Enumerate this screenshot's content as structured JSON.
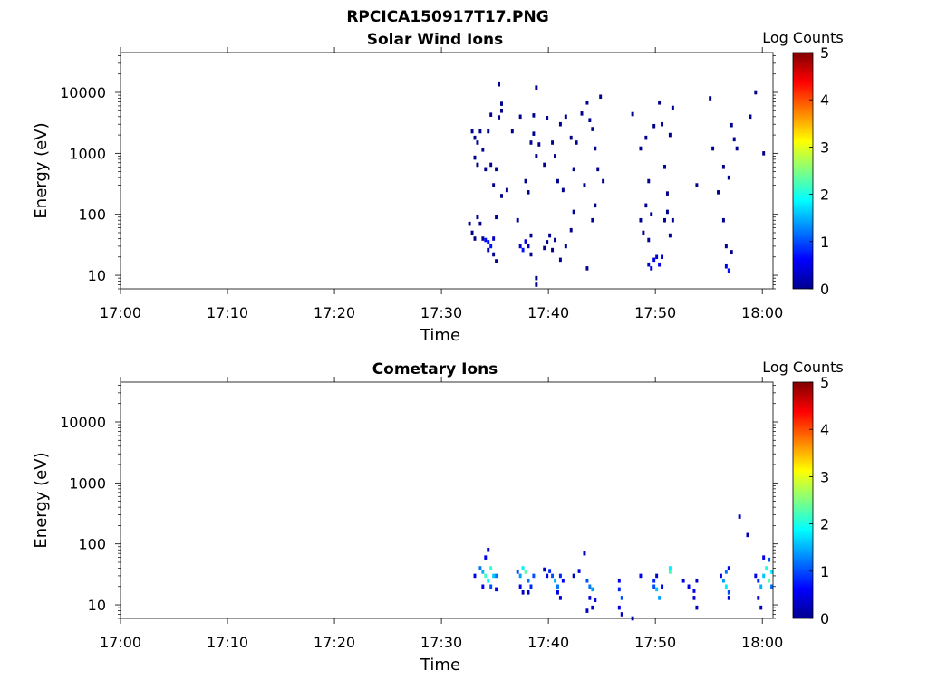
{
  "figure": {
    "title": "RPCICA150917T17.PNG"
  },
  "colormap": [
    "#00008f",
    "#0000ff",
    "#0080ff",
    "#00ffff",
    "#80ff80",
    "#ffff00",
    "#ff8000",
    "#ff0000",
    "#800000"
  ],
  "chart_data": [
    {
      "type": "heatmap",
      "title": "Solar Wind Ions",
      "xlabel": "Time",
      "ylabel": "Energy (eV)",
      "yscale": "log",
      "xlim": [
        "17:00",
        "18:01"
      ],
      "ylim": [
        6,
        45000
      ],
      "xticks": [
        "17:00",
        "17:10",
        "17:20",
        "17:30",
        "17:40",
        "17:50",
        "18:00"
      ],
      "yticks": [
        10,
        100,
        1000,
        10000
      ],
      "ytick_labels": [
        "10",
        "100",
        "1000",
        "10000"
      ],
      "colorbar": {
        "label": "Log Counts",
        "min": 0,
        "max": 5,
        "ticks": [
          "0",
          "1",
          "2",
          "3",
          "4",
          "5"
        ]
      },
      "grid": false,
      "cells": [
        [
          "17:32:45",
          2300,
          0
        ],
        [
          "17:33:00",
          1800,
          0
        ],
        [
          "17:33:15",
          1500,
          0
        ],
        [
          "17:33:30",
          2300,
          0
        ],
        [
          "17:34:15",
          2300,
          0
        ],
        [
          "17:33:00",
          850,
          0
        ],
        [
          "17:33:15",
          650,
          0
        ],
        [
          "17:33:45",
          1150,
          0
        ],
        [
          "17:34:00",
          550,
          0
        ],
        [
          "17:34:30",
          650,
          0
        ],
        [
          "17:35:00",
          550,
          0
        ],
        [
          "17:35:15",
          3900,
          0
        ],
        [
          "17:35:30",
          5000,
          0
        ],
        [
          "17:35:30",
          6500,
          0
        ],
        [
          "17:35:15",
          13500,
          0
        ],
        [
          "17:34:30",
          4300,
          0
        ],
        [
          "17:36:30",
          2300,
          0
        ],
        [
          "17:34:45",
          300,
          0
        ],
        [
          "17:35:30",
          200,
          0
        ],
        [
          "17:36:00",
          250,
          0
        ],
        [
          "17:37:15",
          4000,
          0
        ],
        [
          "17:37:45",
          350,
          0
        ],
        [
          "17:38:00",
          230,
          0
        ],
        [
          "17:38:15",
          1500,
          0
        ],
        [
          "17:38:30",
          4200,
          0
        ],
        [
          "17:38:30",
          2100,
          0
        ],
        [
          "17:38:45",
          900,
          0
        ],
        [
          "17:39:00",
          1400,
          0
        ],
        [
          "17:39:30",
          650,
          0
        ],
        [
          "17:39:45",
          3800,
          0
        ],
        [
          "17:40:15",
          1500,
          0
        ],
        [
          "17:40:30",
          900,
          0
        ],
        [
          "17:40:45",
          350,
          0
        ],
        [
          "17:41:00",
          3000,
          0
        ],
        [
          "17:41:15",
          250,
          0
        ],
        [
          "17:41:30",
          4000,
          0
        ],
        [
          "17:42:00",
          1800,
          0
        ],
        [
          "17:42:15",
          550,
          0
        ],
        [
          "17:42:30",
          1500,
          0
        ],
        [
          "17:43:00",
          4500,
          0
        ],
        [
          "17:43:15",
          300,
          0
        ],
        [
          "17:43:30",
          6800,
          0
        ],
        [
          "17:43:45",
          3500,
          0
        ],
        [
          "17:44:00",
          2500,
          0
        ],
        [
          "17:44:15",
          1200,
          0
        ],
        [
          "17:44:30",
          550,
          0
        ],
        [
          "17:44:45",
          8500,
          0
        ],
        [
          "17:45:00",
          350,
          0
        ],
        [
          "17:47:45",
          4400,
          0
        ],
        [
          "17:48:30",
          1200,
          0
        ],
        [
          "17:49:00",
          1800,
          0
        ],
        [
          "17:49:15",
          350,
          0
        ],
        [
          "17:49:45",
          2800,
          0
        ],
        [
          "17:50:15",
          6800,
          0
        ],
        [
          "17:50:30",
          3000,
          0
        ],
        [
          "17:50:45",
          600,
          0
        ],
        [
          "17:51:00",
          220,
          0
        ],
        [
          "17:51:15",
          2000,
          0
        ],
        [
          "17:51:30",
          5600,
          0
        ],
        [
          "17:53:45",
          300,
          0
        ],
        [
          "17:55:00",
          8000,
          0
        ],
        [
          "17:55:15",
          1200,
          0
        ],
        [
          "17:55:45",
          230,
          0
        ],
        [
          "17:56:15",
          600,
          0
        ],
        [
          "17:56:45",
          400,
          0
        ],
        [
          "17:57:00",
          2900,
          0
        ],
        [
          "17:57:15",
          1700,
          0
        ],
        [
          "17:57:30",
          1200,
          0
        ],
        [
          "17:58:45",
          4000,
          0
        ],
        [
          "17:59:15",
          10000,
          0
        ],
        [
          "18:00:00",
          1000,
          0
        ],
        [
          "17:38:45",
          12000,
          0
        ],
        [
          "17:32:30",
          70,
          0
        ],
        [
          "17:32:45",
          50,
          0
        ],
        [
          "17:33:00",
          40,
          0
        ],
        [
          "17:33:15",
          90,
          0
        ],
        [
          "17:33:30",
          70,
          0
        ],
        [
          "17:33:45",
          40,
          0
        ],
        [
          "17:34:00",
          38,
          0.7
        ],
        [
          "17:34:15",
          35,
          0.7
        ],
        [
          "17:34:30",
          30,
          0.7
        ],
        [
          "17:34:45",
          40,
          0.3
        ],
        [
          "17:34:15",
          26,
          0.3
        ],
        [
          "17:34:45",
          22,
          0
        ],
        [
          "17:35:00",
          17,
          0
        ],
        [
          "17:35:00",
          90,
          0
        ],
        [
          "17:37:00",
          80,
          0
        ],
        [
          "17:37:15",
          30,
          0.3
        ],
        [
          "17:37:30",
          26,
          0.7
        ],
        [
          "17:37:45",
          36,
          0.5
        ],
        [
          "17:38:00",
          30,
          0.3
        ],
        [
          "17:38:15",
          45,
          0
        ],
        [
          "17:38:15",
          22,
          0
        ],
        [
          "17:38:45",
          9,
          0
        ],
        [
          "17:38:45",
          7,
          0
        ],
        [
          "17:39:30",
          28,
          0
        ],
        [
          "17:39:45",
          35,
          0
        ],
        [
          "17:40:00",
          45,
          0
        ],
        [
          "17:40:15",
          26,
          0
        ],
        [
          "17:40:30",
          38,
          0
        ],
        [
          "17:41:00",
          18,
          0
        ],
        [
          "17:41:30",
          30,
          0
        ],
        [
          "17:42:00",
          55,
          0
        ],
        [
          "17:42:15",
          110,
          0
        ],
        [
          "17:43:30",
          13,
          0
        ],
        [
          "17:44:00",
          80,
          0
        ],
        [
          "17:44:15",
          140,
          0
        ],
        [
          "17:48:30",
          80,
          0
        ],
        [
          "17:48:45",
          50,
          0
        ],
        [
          "17:49:00",
          140,
          0
        ],
        [
          "17:49:15",
          38,
          0
        ],
        [
          "17:49:30",
          100,
          0
        ],
        [
          "17:49:15",
          15,
          0.3
        ],
        [
          "17:49:30",
          13,
          0.5
        ],
        [
          "17:49:45",
          18,
          0.5
        ],
        [
          "17:50:00",
          20,
          0.3
        ],
        [
          "17:50:15",
          15,
          0.5
        ],
        [
          "17:50:30",
          20,
          0.3
        ],
        [
          "17:50:45",
          80,
          0
        ],
        [
          "17:51:00",
          110,
          0
        ],
        [
          "17:51:15",
          45,
          0
        ],
        [
          "17:51:30",
          80,
          0
        ],
        [
          "17:56:15",
          80,
          0
        ],
        [
          "17:56:30",
          30,
          0
        ],
        [
          "17:56:30",
          14,
          0.5
        ],
        [
          "17:56:45",
          12,
          0.7
        ],
        [
          "17:57:00",
          24,
          0
        ]
      ]
    },
    {
      "type": "heatmap",
      "title": "Cometary Ions",
      "xlabel": "Time",
      "ylabel": "Energy (eV)",
      "yscale": "log",
      "xlim": [
        "17:00",
        "18:01"
      ],
      "ylim": [
        6,
        45000
      ],
      "xticks": [
        "17:00",
        "17:10",
        "17:20",
        "17:30",
        "17:40",
        "17:50",
        "18:00"
      ],
      "yticks": [
        10,
        100,
        1000,
        10000
      ],
      "ytick_labels": [
        "10",
        "100",
        "1000",
        "10000"
      ],
      "colorbar": {
        "label": "Log Counts",
        "min": 0,
        "max": 5,
        "ticks": [
          "0",
          "1",
          "2",
          "3",
          "4",
          "5"
        ]
      },
      "grid": false,
      "cells": [
        [
          "17:33:00",
          30,
          0.5
        ],
        [
          "17:33:30",
          40,
          1.2
        ],
        [
          "17:33:45",
          35,
          1.5
        ],
        [
          "17:34:00",
          30,
          2.2
        ],
        [
          "17:34:15",
          25,
          1.8
        ],
        [
          "17:34:30",
          40,
          2.1
        ],
        [
          "17:34:45",
          30,
          1.6
        ],
        [
          "17:34:30",
          20,
          1.0
        ],
        [
          "17:35:00",
          30,
          1.2
        ],
        [
          "17:33:45",
          20,
          0.6
        ],
        [
          "17:34:00",
          60,
          0.5
        ],
        [
          "17:34:15",
          80,
          0.4
        ],
        [
          "17:35:00",
          18,
          0.5
        ],
        [
          "17:37:00",
          35,
          1.0
        ],
        [
          "17:37:15",
          30,
          1.4
        ],
        [
          "17:37:30",
          40,
          1.8
        ],
        [
          "17:37:45",
          35,
          2.3
        ],
        [
          "17:38:00",
          25,
          1.2
        ],
        [
          "17:38:15",
          20,
          0.8
        ],
        [
          "17:38:30",
          30,
          1.0
        ],
        [
          "17:37:15",
          20,
          0.5
        ],
        [
          "17:37:30",
          16,
          0.3
        ],
        [
          "17:38:00",
          16,
          0.3
        ],
        [
          "17:39:30",
          38,
          0.3
        ],
        [
          "17:39:45",
          30,
          0.5
        ],
        [
          "17:40:00",
          36,
          0.8
        ],
        [
          "17:40:15",
          30,
          1.0
        ],
        [
          "17:40:30",
          25,
          1.5
        ],
        [
          "17:40:45",
          20,
          1.2
        ],
        [
          "17:41:00",
          30,
          0.8
        ],
        [
          "17:41:15",
          25,
          0.6
        ],
        [
          "17:40:45",
          16,
          0.5
        ],
        [
          "17:41:00",
          13,
          0.4
        ],
        [
          "17:42:15",
          30,
          0.3
        ],
        [
          "17:42:45",
          36,
          0.5
        ],
        [
          "17:43:15",
          70,
          0.3
        ],
        [
          "17:43:30",
          25,
          1.0
        ],
        [
          "17:43:45",
          20,
          1.2
        ],
        [
          "17:43:45",
          13,
          0.4
        ],
        [
          "17:44:00",
          18,
          1.4
        ],
        [
          "17:44:00",
          9,
          0.3
        ],
        [
          "17:44:15",
          12,
          0.5
        ],
        [
          "17:43:30",
          8,
          0.2
        ],
        [
          "17:46:30",
          25,
          0.5
        ],
        [
          "17:46:30",
          18,
          0.8
        ],
        [
          "17:46:45",
          13,
          1.0
        ],
        [
          "17:46:30",
          9,
          0.5
        ],
        [
          "17:46:45",
          7,
          0.3
        ],
        [
          "17:47:45",
          6,
          0.3
        ],
        [
          "17:48:30",
          30,
          0.5
        ],
        [
          "17:49:45",
          25,
          0.8
        ],
        [
          "17:49:45",
          20,
          1.0
        ],
        [
          "17:50:00",
          18,
          1.6
        ],
        [
          "17:50:15",
          13,
          1.4
        ],
        [
          "17:50:30",
          20,
          0.6
        ],
        [
          "17:50:00",
          30,
          0.4
        ],
        [
          "17:51:15",
          35,
          2.2
        ],
        [
          "17:51:15",
          40,
          1.8
        ],
        [
          "17:52:30",
          25,
          0.4
        ],
        [
          "17:53:00",
          20,
          0.5
        ],
        [
          "17:53:30",
          17,
          0.6
        ],
        [
          "17:53:30",
          13,
          0.4
        ],
        [
          "17:53:45",
          25,
          0.3
        ],
        [
          "17:53:45",
          9,
          0.3
        ],
        [
          "17:56:00",
          30,
          0.5
        ],
        [
          "17:56:15",
          25,
          1.4
        ],
        [
          "17:56:30",
          20,
          1.8
        ],
        [
          "17:56:30",
          35,
          1.2
        ],
        [
          "17:56:45",
          16,
          1.0
        ],
        [
          "17:56:45",
          40,
          0.6
        ],
        [
          "17:56:45",
          13,
          0.5
        ],
        [
          "17:57:45",
          280,
          0.3
        ],
        [
          "17:58:30",
          140,
          0.3
        ],
        [
          "17:59:15",
          30,
          0.5
        ],
        [
          "17:59:30",
          25,
          0.8
        ],
        [
          "17:59:45",
          20,
          1.5
        ],
        [
          "17:59:30",
          13,
          0.5
        ],
        [
          "17:59:45",
          9,
          0.3
        ],
        [
          "18:00:00",
          30,
          1.6
        ],
        [
          "18:00:15",
          40,
          2.0
        ],
        [
          "18:00:30",
          25,
          2.3
        ],
        [
          "18:00:45",
          35,
          1.8
        ],
        [
          "18:00:30",
          55,
          1.0
        ],
        [
          "18:00:00",
          60,
          0.5
        ],
        [
          "18:00:45",
          20,
          1.2
        ]
      ]
    }
  ]
}
